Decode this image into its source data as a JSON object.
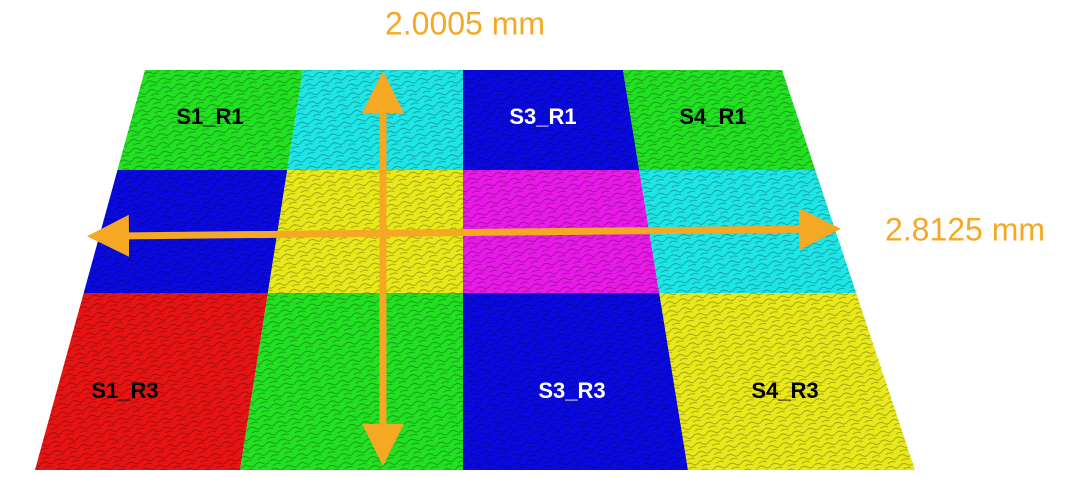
{
  "dimensions": {
    "vertical_label": "2.0005 mm",
    "horizontal_label": "2.8125 mm"
  },
  "sample_labels": [
    "S1_R1",
    "S3_R1",
    "S4_R1",
    "S1_R3",
    "S3_R3",
    "S4_R3"
  ]
}
